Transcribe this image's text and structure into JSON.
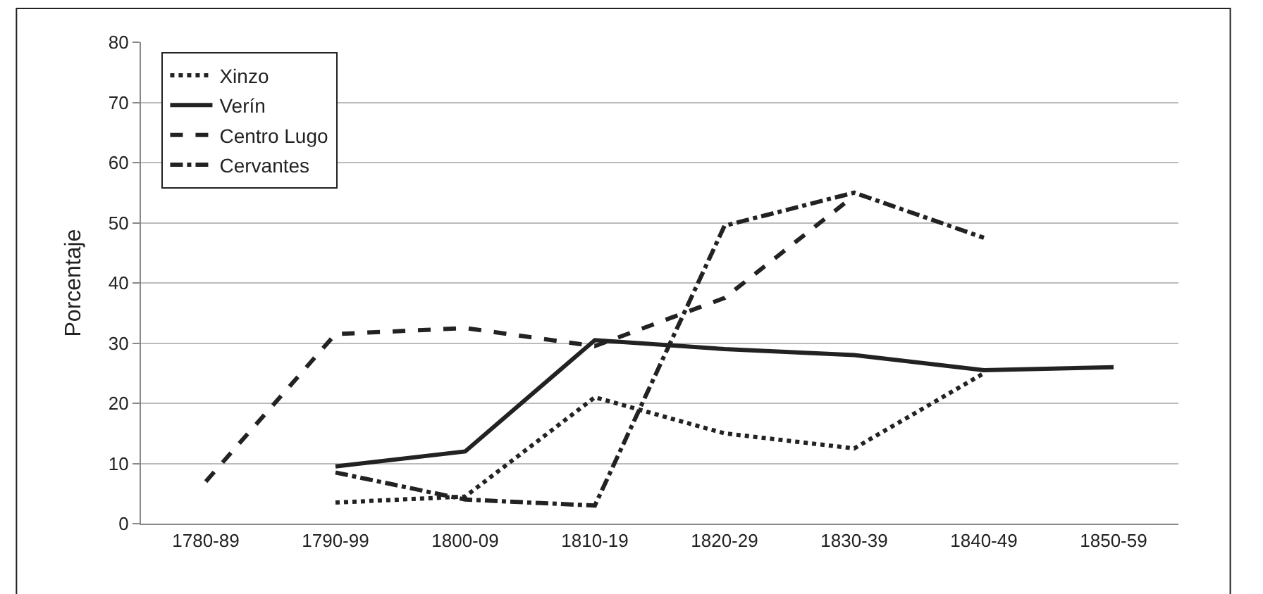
{
  "chart_data": {
    "type": "line",
    "ylabel": "Porcentaje",
    "categories": [
      "1780-89",
      "1790-99",
      "1800-09",
      "1810-19",
      "1820-29",
      "1830-39",
      "1840-49",
      "1850-59"
    ],
    "series": [
      {
        "name": "Xinzo",
        "color": "#222222",
        "line_style": "dotted",
        "values": [
          null,
          3.5,
          4.5,
          21,
          15,
          12.5,
          25,
          null
        ]
      },
      {
        "name": "Verín",
        "color": "#222222",
        "line_style": "solid",
        "values": [
          null,
          9.5,
          12,
          30.5,
          29,
          28,
          25.5,
          26
        ]
      },
      {
        "name": "Centro Lugo",
        "color": "#222222",
        "line_style": "dashed",
        "values": [
          7,
          31.5,
          32.5,
          29.5,
          37.5,
          54.5,
          null,
          null
        ]
      },
      {
        "name": "Cervantes",
        "color": "#222222",
        "line_style": "dashdot",
        "values": [
          null,
          8.5,
          4,
          3,
          49.5,
          55,
          47.5,
          null
        ]
      }
    ],
    "ylim": [
      0,
      80
    ],
    "yticks": [
      0,
      10,
      20,
      30,
      40,
      50,
      60,
      70,
      80
    ],
    "grid": "y",
    "legend": "top left",
    "marker": "none"
  }
}
